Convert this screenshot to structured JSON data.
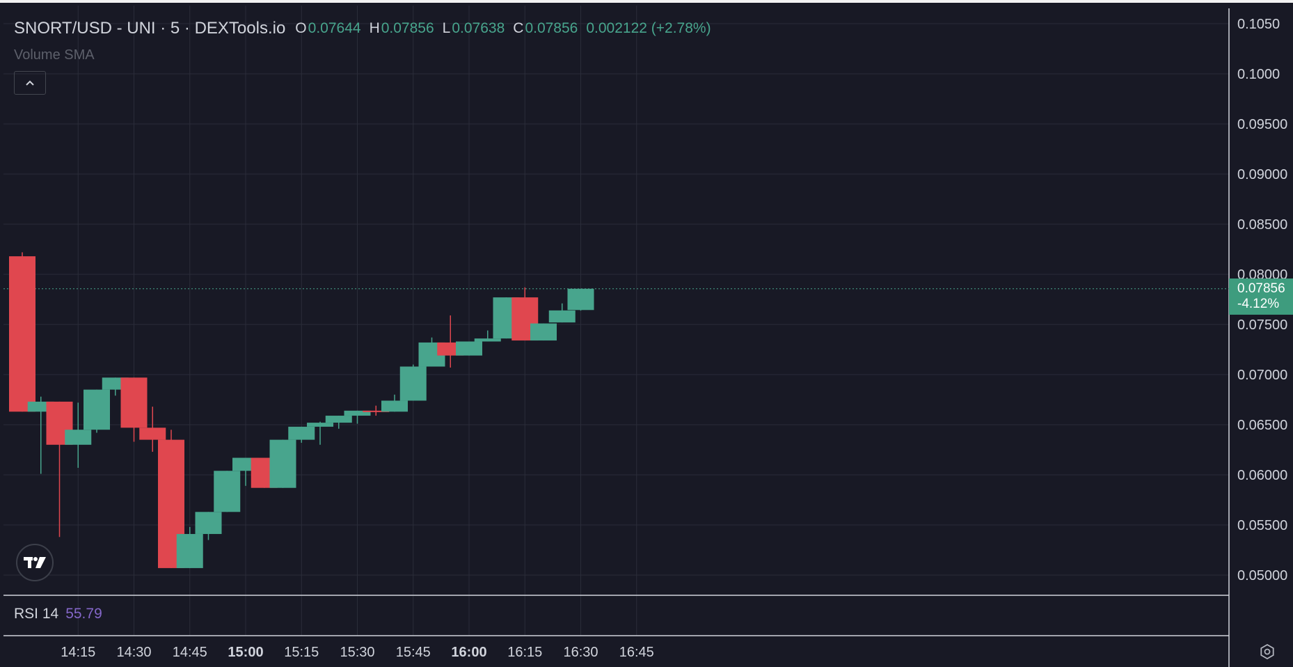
{
  "legend": {
    "symbol": "SNORT/USD - UNI · 5 · DEXTools.io",
    "open_key": "O",
    "open": "0.07644",
    "high_key": "H",
    "high": "0.07856",
    "low_key": "L",
    "low": "0.07638",
    "close_key": "C",
    "close": "0.07856",
    "change": "0.002122 (+2.78%)"
  },
  "indicators": {
    "volume_label": "Volume SMA",
    "rsi_label": "RSI 14",
    "rsi_value": "55.79"
  },
  "last_price": {
    "value": "0.07856",
    "percent": "-4.12%"
  },
  "icons": {
    "collapse": "chevron-up-icon",
    "logo": "tradingview-logo-icon",
    "settings": "gear-icon"
  },
  "colors": {
    "background": "#181925",
    "up": "#48a58d",
    "down": "#e0474f",
    "rsi": "#8467c9",
    "grid": "#2a2c39",
    "text": "#d1d4dc"
  },
  "chart_data": {
    "type": "candlestick",
    "y_ticks": [
      "0.1050",
      "0.1000",
      "0.09500",
      "0.09000",
      "0.08500",
      "0.08000",
      "0.07500",
      "0.07000",
      "0.06500",
      "0.06000",
      "0.05500",
      "0.05000"
    ],
    "y_values": [
      0.105,
      0.1,
      0.095,
      0.09,
      0.085,
      0.08,
      0.075,
      0.07,
      0.065,
      0.06,
      0.055,
      0.05
    ],
    "x_ticks": [
      {
        "label": "14:15",
        "t": 15,
        "bold": false
      },
      {
        "label": "14:30",
        "t": 30,
        "bold": false
      },
      {
        "label": "14:45",
        "t": 45,
        "bold": false
      },
      {
        "label": "15:00",
        "t": 60,
        "bold": true
      },
      {
        "label": "15:15",
        "t": 75,
        "bold": false
      },
      {
        "label": "15:30",
        "t": 90,
        "bold": false
      },
      {
        "label": "15:45",
        "t": 105,
        "bold": false
      },
      {
        "label": "16:00",
        "t": 120,
        "bold": true
      },
      {
        "label": "16:15",
        "t": 135,
        "bold": false
      },
      {
        "label": "16:30",
        "t": 150,
        "bold": false
      },
      {
        "label": "16:45",
        "t": 165,
        "bold": false
      }
    ],
    "ylim": [
      0.048,
      0.1065
    ],
    "last_price": 0.07856,
    "candles": [
      {
        "t": 0,
        "o": 0.0818,
        "h": 0.0822,
        "l": 0.0663,
        "c": 0.0663
      },
      {
        "t": 5,
        "o": 0.0663,
        "h": 0.0678,
        "l": 0.0601,
        "c": 0.0673
      },
      {
        "t": 10,
        "o": 0.0673,
        "h": 0.0673,
        "l": 0.0538,
        "c": 0.063
      },
      {
        "t": 15,
        "o": 0.063,
        "h": 0.0672,
        "l": 0.0607,
        "c": 0.0645
      },
      {
        "t": 20,
        "o": 0.0645,
        "h": 0.0685,
        "l": 0.0642,
        "c": 0.0685
      },
      {
        "t": 25,
        "o": 0.0685,
        "h": 0.0697,
        "l": 0.0679,
        "c": 0.0697
      },
      {
        "t": 30,
        "o": 0.0697,
        "h": 0.0697,
        "l": 0.0633,
        "c": 0.0647
      },
      {
        "t": 35,
        "o": 0.0647,
        "h": 0.0668,
        "l": 0.0623,
        "c": 0.0635
      },
      {
        "t": 40,
        "o": 0.0635,
        "h": 0.0645,
        "l": 0.0507,
        "c": 0.0507
      },
      {
        "t": 45,
        "o": 0.0507,
        "h": 0.0548,
        "l": 0.0507,
        "c": 0.0541
      },
      {
        "t": 50,
        "o": 0.0541,
        "h": 0.0563,
        "l": 0.0535,
        "c": 0.0563
      },
      {
        "t": 55,
        "o": 0.0563,
        "h": 0.0604,
        "l": 0.0563,
        "c": 0.0604
      },
      {
        "t": 60,
        "o": 0.0604,
        "h": 0.0617,
        "l": 0.0589,
        "c": 0.0617
      },
      {
        "t": 65,
        "o": 0.0617,
        "h": 0.0617,
        "l": 0.0587,
        "c": 0.0587
      },
      {
        "t": 70,
        "o": 0.0587,
        "h": 0.0635,
        "l": 0.0587,
        "c": 0.0635
      },
      {
        "t": 75,
        "o": 0.0635,
        "h": 0.0648,
        "l": 0.0632,
        "c": 0.0648
      },
      {
        "t": 80,
        "o": 0.0648,
        "h": 0.0653,
        "l": 0.063,
        "c": 0.0652
      },
      {
        "t": 85,
        "o": 0.0652,
        "h": 0.0659,
        "l": 0.0646,
        "c": 0.0659
      },
      {
        "t": 90,
        "o": 0.0659,
        "h": 0.0664,
        "l": 0.0651,
        "c": 0.0664
      },
      {
        "t": 95,
        "o": 0.0664,
        "h": 0.0669,
        "l": 0.0659,
        "c": 0.0663
      },
      {
        "t": 100,
        "o": 0.0663,
        "h": 0.068,
        "l": 0.0663,
        "c": 0.0674
      },
      {
        "t": 105,
        "o": 0.0674,
        "h": 0.071,
        "l": 0.0674,
        "c": 0.0708
      },
      {
        "t": 110,
        "o": 0.0708,
        "h": 0.0737,
        "l": 0.0708,
        "c": 0.0732
      },
      {
        "t": 115,
        "o": 0.0732,
        "h": 0.0759,
        "l": 0.0707,
        "c": 0.0719
      },
      {
        "t": 120,
        "o": 0.0719,
        "h": 0.0733,
        "l": 0.0719,
        "c": 0.0733
      },
      {
        "t": 125,
        "o": 0.0733,
        "h": 0.0744,
        "l": 0.0733,
        "c": 0.0736
      },
      {
        "t": 130,
        "o": 0.0736,
        "h": 0.0777,
        "l": 0.0736,
        "c": 0.0777
      },
      {
        "t": 135,
        "o": 0.0777,
        "h": 0.0787,
        "l": 0.0734,
        "c": 0.0734
      },
      {
        "t": 140,
        "o": 0.0734,
        "h": 0.0751,
        "l": 0.0734,
        "c": 0.0751
      },
      {
        "t": 145,
        "o": 0.0752,
        "h": 0.0771,
        "l": 0.0752,
        "c": 0.0764
      },
      {
        "t": 150,
        "o": 0.07644,
        "h": 0.07856,
        "l": 0.07638,
        "c": 0.07856
      }
    ]
  }
}
